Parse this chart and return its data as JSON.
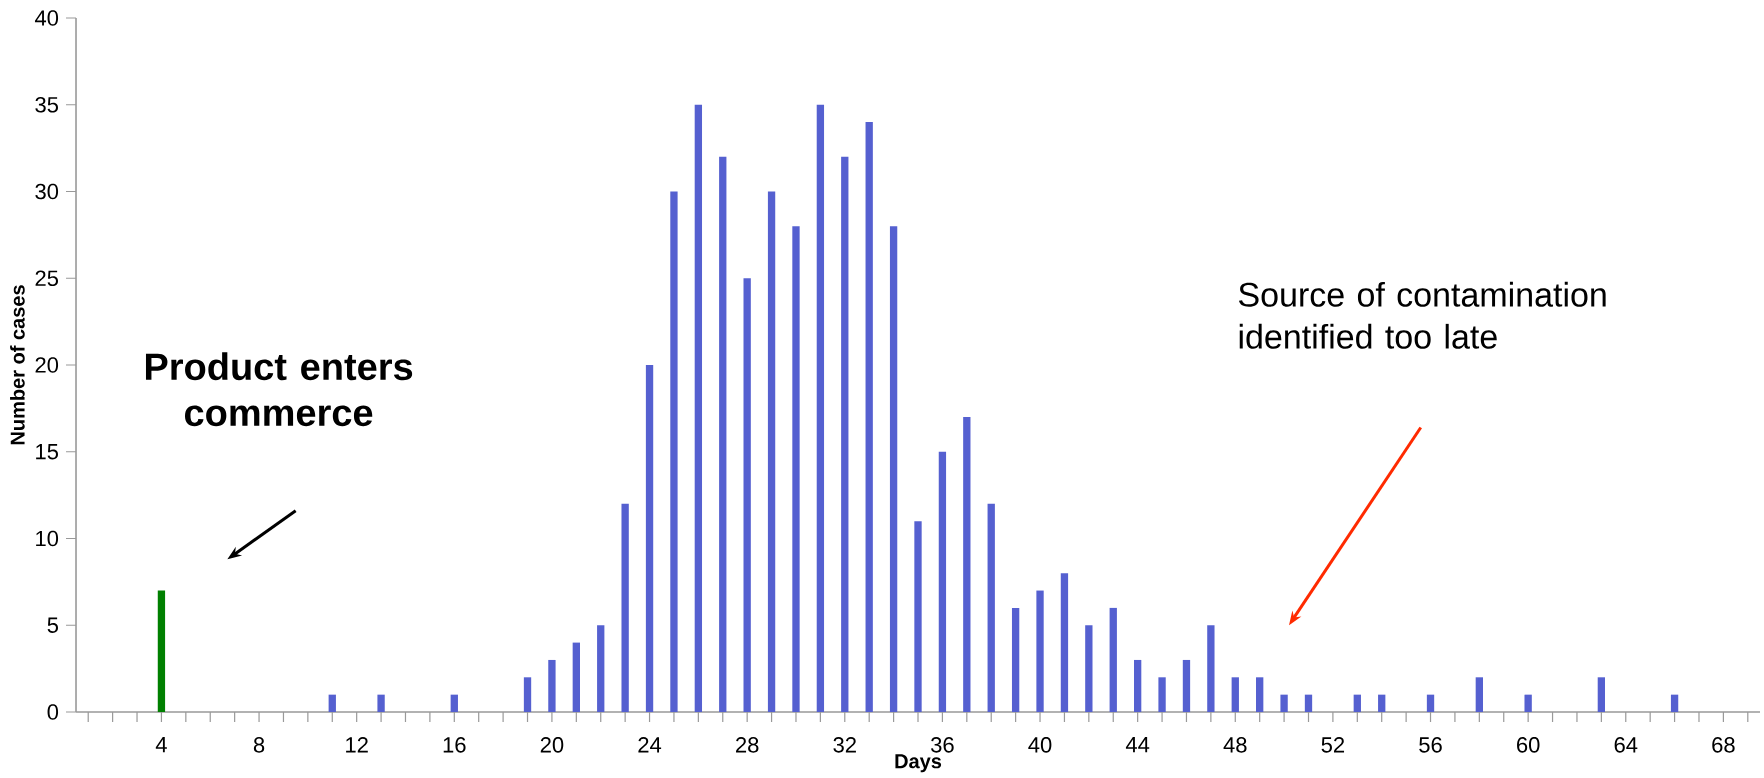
{
  "chart_data": {
    "type": "bar",
    "xlabel": "Days",
    "ylabel": "Number of cases",
    "series": [
      {
        "color": "#008000",
        "x": [
          4
        ],
        "values": [
          7
        ]
      },
      {
        "color": "#5560d0",
        "x": [
          11,
          13,
          16,
          19,
          20,
          21,
          22,
          23,
          24,
          25,
          26,
          27,
          28,
          29,
          30,
          31,
          32,
          33,
          34,
          35,
          36,
          37,
          38,
          39,
          40,
          41,
          42,
          43,
          44,
          45,
          46,
          47,
          48,
          49,
          50,
          51,
          53,
          54,
          56,
          58,
          60,
          63,
          66
        ],
        "values": [
          1,
          1,
          1,
          2,
          3,
          4,
          5,
          12,
          20,
          30,
          35,
          32,
          25,
          30,
          28,
          35,
          32,
          34,
          28,
          11,
          15,
          17,
          12,
          6,
          7,
          8,
          5,
          6,
          3,
          2,
          3,
          5,
          2,
          2,
          1,
          1,
          1,
          1,
          1,
          2,
          1,
          2,
          1
        ]
      }
    ],
    "xlim": [
      0.5,
      69.5
    ],
    "xticks": [
      {
        "value": 1,
        "label": null
      },
      {
        "value": 2,
        "label": null
      },
      {
        "value": 3,
        "label": null
      },
      4,
      {
        "value": 5,
        "label": null
      },
      {
        "value": 6,
        "label": null
      },
      {
        "value": 7,
        "label": null
      },
      8,
      {
        "value": 9,
        "label": null
      },
      {
        "value": 10,
        "label": null
      },
      {
        "value": 11,
        "label": null
      },
      12,
      {
        "value": 13,
        "label": null
      },
      {
        "value": 14,
        "label": null
      },
      {
        "value": 15,
        "label": null
      },
      16,
      {
        "value": 17,
        "label": null
      },
      {
        "value": 18,
        "label": null
      },
      {
        "value": 19,
        "label": null
      },
      20,
      {
        "value": 21,
        "label": null
      },
      {
        "value": 22,
        "label": null
      },
      {
        "value": 23,
        "label": null
      },
      24,
      {
        "value": 25,
        "label": null
      },
      {
        "value": 26,
        "label": null
      },
      {
        "value": 27,
        "label": null
      },
      28,
      {
        "value": 29,
        "label": null
      },
      {
        "value": 30,
        "label": null
      },
      {
        "value": 31,
        "label": null
      },
      32,
      {
        "value": 33,
        "label": null
      },
      {
        "value": 34,
        "label": null
      },
      {
        "value": 35,
        "label": null
      },
      36,
      {
        "value": 37,
        "label": null
      },
      {
        "value": 38,
        "label": null
      },
      {
        "value": 39,
        "label": null
      },
      40,
      {
        "value": 41,
        "label": null
      },
      {
        "value": 42,
        "label": null
      },
      {
        "value": 43,
        "label": null
      },
      44,
      {
        "value": 45,
        "label": null
      },
      {
        "value": 46,
        "label": null
      },
      {
        "value": 47,
        "label": null
      },
      48,
      {
        "value": 49,
        "label": null
      },
      {
        "value": 50,
        "label": null
      },
      {
        "value": 51,
        "label": null
      },
      52,
      {
        "value": 53,
        "label": null
      },
      {
        "value": 54,
        "label": null
      },
      {
        "value": 55,
        "label": null
      },
      56,
      {
        "value": 57,
        "label": null
      },
      {
        "value": 58,
        "label": null
      },
      {
        "value": 59,
        "label": null
      },
      60,
      {
        "value": 61,
        "label": null
      },
      {
        "value": 62,
        "label": null
      },
      {
        "value": 63,
        "label": null
      },
      64,
      {
        "value": 65,
        "label": null
      },
      {
        "value": 66,
        "label": null
      },
      {
        "value": 67,
        "label": null
      },
      68,
      {
        "value": 69,
        "label": null
      }
    ],
    "ylim": [
      0,
      40
    ],
    "yticks": [
      0,
      5,
      10,
      15,
      20,
      25,
      30,
      35,
      40
    ],
    "annotations": [
      "**Product enters commerce**",
      "Source of contamination identified too late"
    ]
  }
}
